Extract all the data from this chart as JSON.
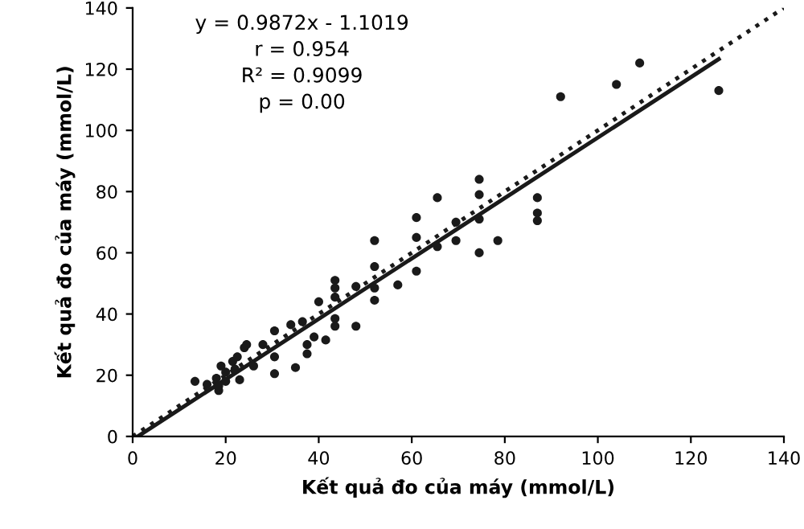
{
  "chart_data": {
    "type": "scatter",
    "xlabel": "Kết quả đo của máy (mmol/L)",
    "ylabel": "Kết quả đo của máy (mmol/L)",
    "xlim": [
      0,
      140
    ],
    "ylim": [
      0,
      140
    ],
    "xticks": [
      0,
      20,
      40,
      60,
      80,
      100,
      120,
      140
    ],
    "yticks": [
      0,
      20,
      40,
      60,
      80,
      100,
      120,
      140
    ],
    "grid": false,
    "legend": false,
    "annotations": [
      "y = 0.9872x - 1.1019",
      "r = 0.954",
      "R² = 0.9099",
      "p = 0.00"
    ],
    "series": [
      {
        "color": "#1a1a1a",
        "marker": "circle",
        "x": [
          92,
          74.5,
          74.5,
          65.5,
          61,
          52,
          52,
          52,
          52,
          43.5,
          43.5,
          43.5,
          48,
          57,
          61,
          61,
          65.5,
          69.5,
          69.5,
          74.5,
          74.5,
          78.5,
          87,
          87,
          87,
          43.5,
          13.4,
          18,
          18.5,
          19,
          20,
          21.5,
          23,
          24,
          24.5,
          26,
          28,
          30.5,
          30.5,
          30.5,
          35,
          34,
          36.5,
          37.5,
          37.5,
          39,
          40,
          41.5,
          43.5,
          48,
          18.5,
          22.5,
          20,
          104,
          109,
          126,
          16,
          22
        ],
        "values": [
          111,
          84,
          79,
          78,
          71.5,
          64,
          55.5,
          48.5,
          44.5,
          51,
          48.5,
          45.5,
          49,
          49.5,
          65,
          54,
          62,
          70,
          64,
          71,
          60,
          64,
          78,
          73,
          70.5,
          38.5,
          18,
          19,
          15,
          23,
          21,
          24.5,
          18.5,
          29,
          30,
          23,
          30,
          20.5,
          26,
          34.5,
          22.5,
          36.5,
          37.5,
          30,
          27,
          32.5,
          44,
          31.5,
          36,
          36,
          16.5,
          26,
          18,
          115,
          122,
          113,
          17,
          22
        ]
      },
      {
        "type": "line",
        "color": "#1a1a1a",
        "line_style": "solid",
        "marker": "none",
        "x": [
          1.1,
          126
        ],
        "values": [
          0,
          123.3
        ]
      },
      {
        "type": "line",
        "color": "#1a1a1a",
        "line_style": "dotted",
        "marker": "none",
        "x": [
          0,
          140
        ],
        "values": [
          0,
          140
        ]
      }
    ]
  }
}
